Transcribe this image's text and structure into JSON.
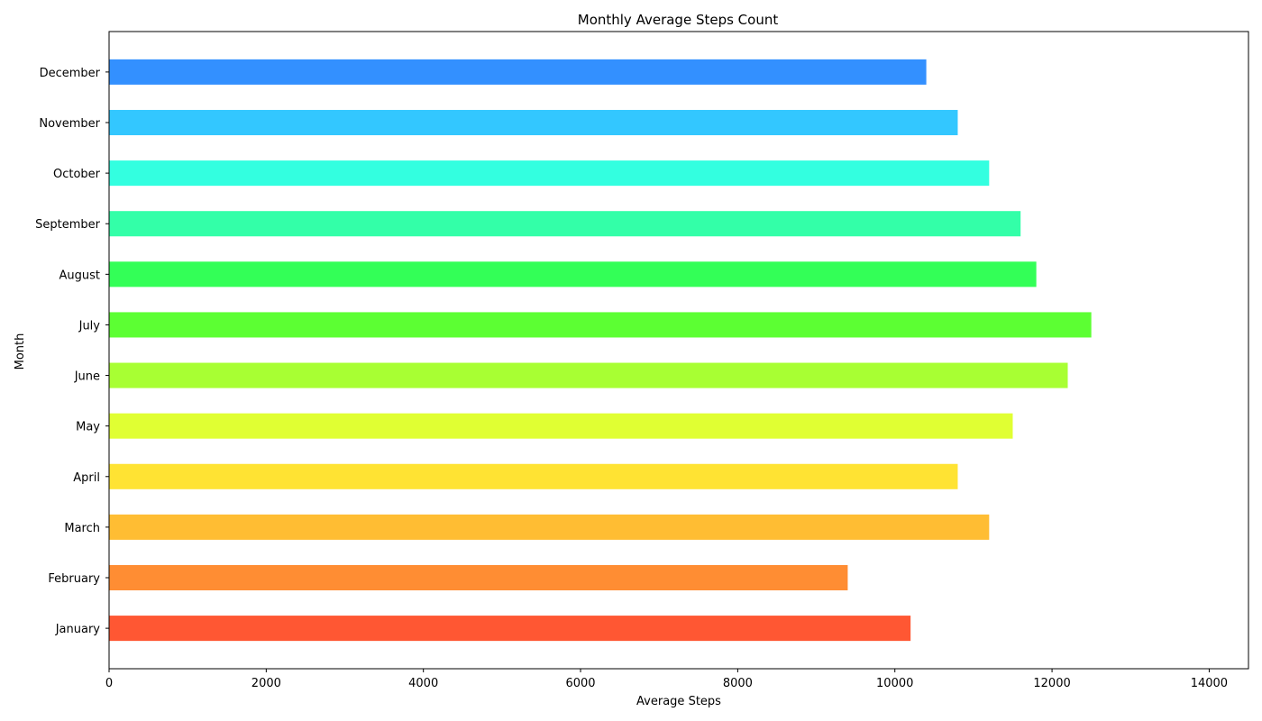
{
  "chart_data": {
    "type": "bar",
    "orientation": "horizontal",
    "title": "Monthly Average Steps Count",
    "xlabel": "Average Steps",
    "ylabel": "Month",
    "xlim": [
      0,
      14500
    ],
    "xticks": [
      0,
      2000,
      4000,
      6000,
      8000,
      10000,
      12000,
      14000
    ],
    "categories": [
      "January",
      "February",
      "March",
      "April",
      "May",
      "June",
      "July",
      "August",
      "September",
      "October",
      "November",
      "December"
    ],
    "values": [
      10200,
      9400,
      11200,
      10800,
      11500,
      12200,
      12500,
      11800,
      11600,
      11200,
      10800,
      10400
    ],
    "colors": [
      "#ff5733",
      "#ff8d33",
      "#ffbd33",
      "#ffe333",
      "#e0ff33",
      "#a8ff33",
      "#5cff33",
      "#33ff57",
      "#33ffa8",
      "#33ffe0",
      "#33c7ff",
      "#3390ff"
    ],
    "grid": false,
    "legend": "none"
  }
}
